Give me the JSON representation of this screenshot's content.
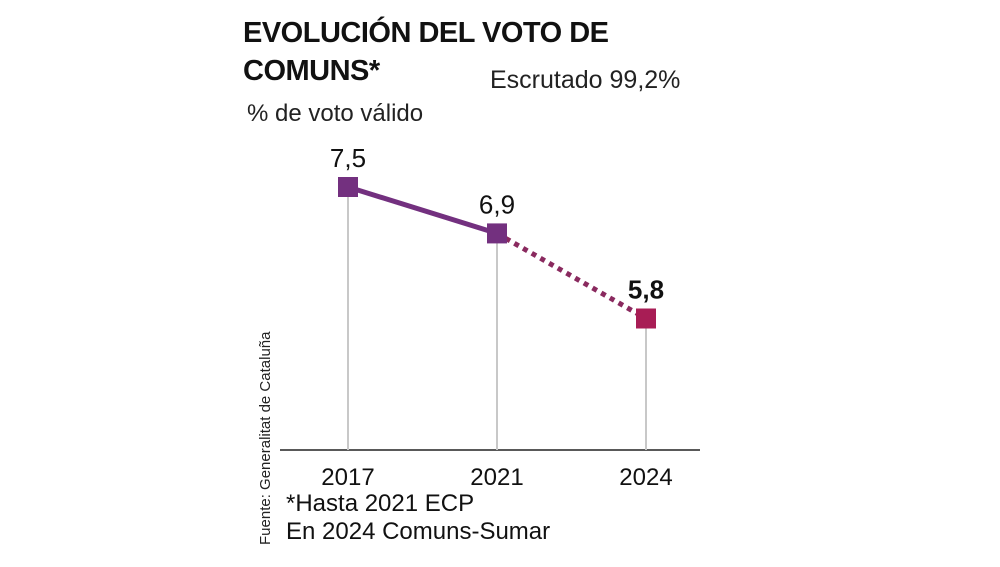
{
  "header": {
    "title": "EVOLUCIÓN DEL VOTO DE COMUNS*",
    "status": "Escrutado 99,2%",
    "unit": "% de voto válido"
  },
  "source": "Fuente: Generalitat de Cataluña",
  "notes": [
    "*Hasta 2021 ECP",
    "En 2024 Comuns-Sumar"
  ],
  "colors": {
    "past": "#73307f",
    "current": "#a81d55",
    "dotted": "#8a2a5f",
    "guide": "#c8c8c8"
  },
  "chart_data": {
    "type": "line",
    "title": "EVOLUCIÓN DEL VOTO DE COMUNS*",
    "ylabel": "% de voto válido",
    "xlabel": "",
    "categories": [
      "2017",
      "2021",
      "2024"
    ],
    "values": [
      7.5,
      6.9,
      5.8
    ],
    "value_labels": [
      "7,5",
      "6,9",
      "5,8"
    ],
    "ylim": [
      4.1,
      7.5
    ],
    "grid": false,
    "line_styles": [
      "solid",
      "dotted"
    ]
  }
}
